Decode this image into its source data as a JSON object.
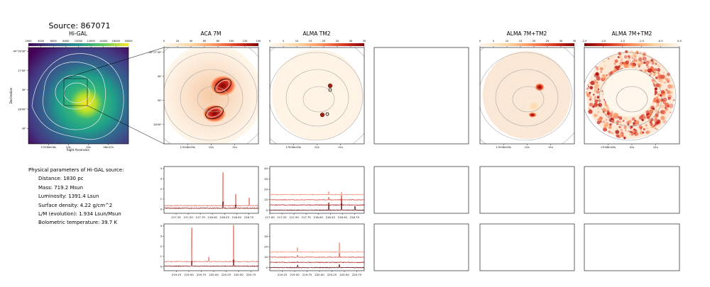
{
  "source_title": "Source: 867071",
  "info": {
    "heading": "Physical parameters of Hi-GAL source:",
    "lines": [
      "Distance: 1830 pc",
      "Mass: 719.2 Msun",
      "Luminosity: 1391.4 Lsun",
      "Surface density: 4.22 g/cm^2",
      "L/M (evolution): 1.934 Lsun/Msun",
      "Bolometric temperature: 39.7 K"
    ]
  },
  "chart_data": [
    {
      "type": "heatmap",
      "title": "Hi-GAL",
      "colormap": "viridis",
      "colorbar_ticks": [
        "2000",
        "4000",
        "6000",
        "8000",
        "10000",
        "12000",
        "14000",
        "16000",
        "18000"
      ],
      "xlabel": "Right Ascension",
      "ylabel": "Declination",
      "x_ticks": [
        "17h06m06s",
        "03s",
        "00s",
        "06m57s"
      ],
      "y_ticks": [
        "-40°26'30\"",
        "27'00\"",
        "30\"",
        "28'00\"",
        "30\""
      ],
      "grid": false
    },
    {
      "type": "heatmap",
      "title": "ACA 7M",
      "colormap": "OrRd",
      "colorbar_ticks": [
        "0",
        "20",
        "40",
        "60",
        "80",
        "100",
        "120",
        "140"
      ],
      "x_ticks": [
        "17h06m03s",
        "02s",
        "01s"
      ],
      "y_ticks": [
        "-40°27'30\"",
        "40\"",
        "50\"",
        "28'00\""
      ]
    },
    {
      "type": "heatmap",
      "title": "ALMA TM2",
      "colormap": "OrRd",
      "colorbar_ticks": [
        "0",
        "5",
        "10",
        "15",
        "20",
        "25",
        "30",
        "35"
      ],
      "x_ticks": [
        "17h06m03s",
        "02s",
        "01s"
      ]
    },
    {
      "type": "heatmap",
      "title": "",
      "empty": true
    },
    {
      "type": "heatmap",
      "title": "ALMA 7M+TM2",
      "colormap": "OrRd",
      "colorbar_ticks": [
        "0",
        "5",
        "10",
        "15",
        "20",
        "25",
        "30",
        "35"
      ],
      "x_ticks": [
        "17h06m03s",
        "02s",
        "01s"
      ]
    },
    {
      "type": "heatmap",
      "title": "ALMA 7M+TM2",
      "colormap": "OrRd_r",
      "colorbar_ticks": [
        "-2.5",
        "-2.0",
        "-1.5",
        "-1.0",
        "-0.5",
        "0.0"
      ],
      "x_ticks": [
        "17h06m03s",
        "02s",
        "01s"
      ]
    },
    {
      "type": "line",
      "panel": "ACA spectra, spw 1",
      "x_ticks": [
        217.25,
        217.5,
        217.75,
        218.0,
        218.25,
        218.5,
        218.75
      ],
      "xlim": [
        217.0,
        218.95
      ],
      "y_ticks": [
        0,
        1,
        2,
        3,
        4
      ],
      "ylim": [
        -0.4,
        4.2
      ],
      "series": [
        {
          "offset": 0.35,
          "color": "#e36b5b",
          "peaks": [
            [
              218.22,
              3.3
            ],
            [
              218.48,
              1.1
            ],
            [
              218.76,
              0.8
            ]
          ]
        },
        {
          "offset": 0.1,
          "color": "#7a0b0b",
          "peaks": [
            [
              218.22,
              0.6
            ],
            [
              218.48,
              0.3
            ]
          ]
        }
      ]
    },
    {
      "type": "line",
      "panel": "ALMA spectra, spw 1",
      "x_ticks": [
        217.0,
        217.25,
        217.5,
        217.75,
        218.0,
        218.25,
        218.5,
        218.75
      ],
      "xlim": [
        217.0,
        218.95
      ],
      "y_ticks": [
        0,
        10,
        20,
        30,
        40
      ],
      "ylim": [
        -3,
        42
      ],
      "series": [
        {
          "offset": 15,
          "color": "#f08a70",
          "peaks": [
            [
              218.22,
              3.0
            ],
            [
              218.48,
              2.0
            ]
          ]
        },
        {
          "offset": 10,
          "color": "#d94b3b",
          "peaks": [
            [
              218.22,
              2.0
            ],
            [
              218.48,
              4.0
            ]
          ]
        },
        {
          "offset": 5,
          "color": "#a71c1c",
          "peaks": [
            [
              218.22,
              2.0
            ],
            [
              218.48,
              5.0
            ]
          ]
        },
        {
          "offset": 0,
          "color": "#5a0404",
          "peaks": [
            [
              218.22,
              5.0
            ],
            [
              218.48,
              6.0
            ],
            [
              218.76,
              4.0
            ]
          ]
        }
      ]
    },
    {
      "type": "line",
      "panel": "ACA spectra, spw 2",
      "x_ticks": [
        219.25,
        219.5,
        219.75,
        220.0,
        220.25,
        220.5,
        220.75
      ],
      "xlim": [
        219.0,
        220.9
      ],
      "y_ticks": [
        0,
        1,
        2,
        3,
        4
      ],
      "ylim": [
        -0.4,
        4.2
      ],
      "series": [
        {
          "offset": 0.5,
          "color": "#e36b5b",
          "peaks": [
            [
              219.56,
              3.3
            ],
            [
              219.9,
              0.4
            ],
            [
              220.4,
              3.6
            ]
          ]
        },
        {
          "offset": 0.05,
          "color": "#7a0b0b",
          "peaks": [
            [
              219.56,
              0.5
            ],
            [
              220.4,
              0.6
            ]
          ]
        }
      ]
    },
    {
      "type": "line",
      "panel": "ALMA spectra, spw 2",
      "x_ticks": [
        219.25,
        219.5,
        219.75,
        220.0,
        220.25,
        220.5,
        220.75
      ],
      "xlim": [
        219.0,
        220.9
      ],
      "y_ticks": [
        0,
        10,
        20,
        30
      ],
      "ylim": [
        -3,
        42
      ],
      "series": [
        {
          "offset": 15,
          "color": "#f08a70",
          "peaks": [
            [
              219.56,
              4.0
            ],
            [
              220.4,
              9.0
            ]
          ]
        },
        {
          "offset": 10,
          "color": "#d94b3b",
          "peaks": [
            [
              219.56,
              2.0
            ],
            [
              220.4,
              4.0
            ]
          ]
        },
        {
          "offset": 5,
          "color": "#a71c1c",
          "peaks": [
            [
              219.56,
              1.0
            ]
          ]
        },
        {
          "offset": 0,
          "color": "#5a0404",
          "peaks": [
            [
              219.56,
              2.0
            ],
            [
              220.4,
              3.0
            ]
          ]
        }
      ]
    }
  ]
}
